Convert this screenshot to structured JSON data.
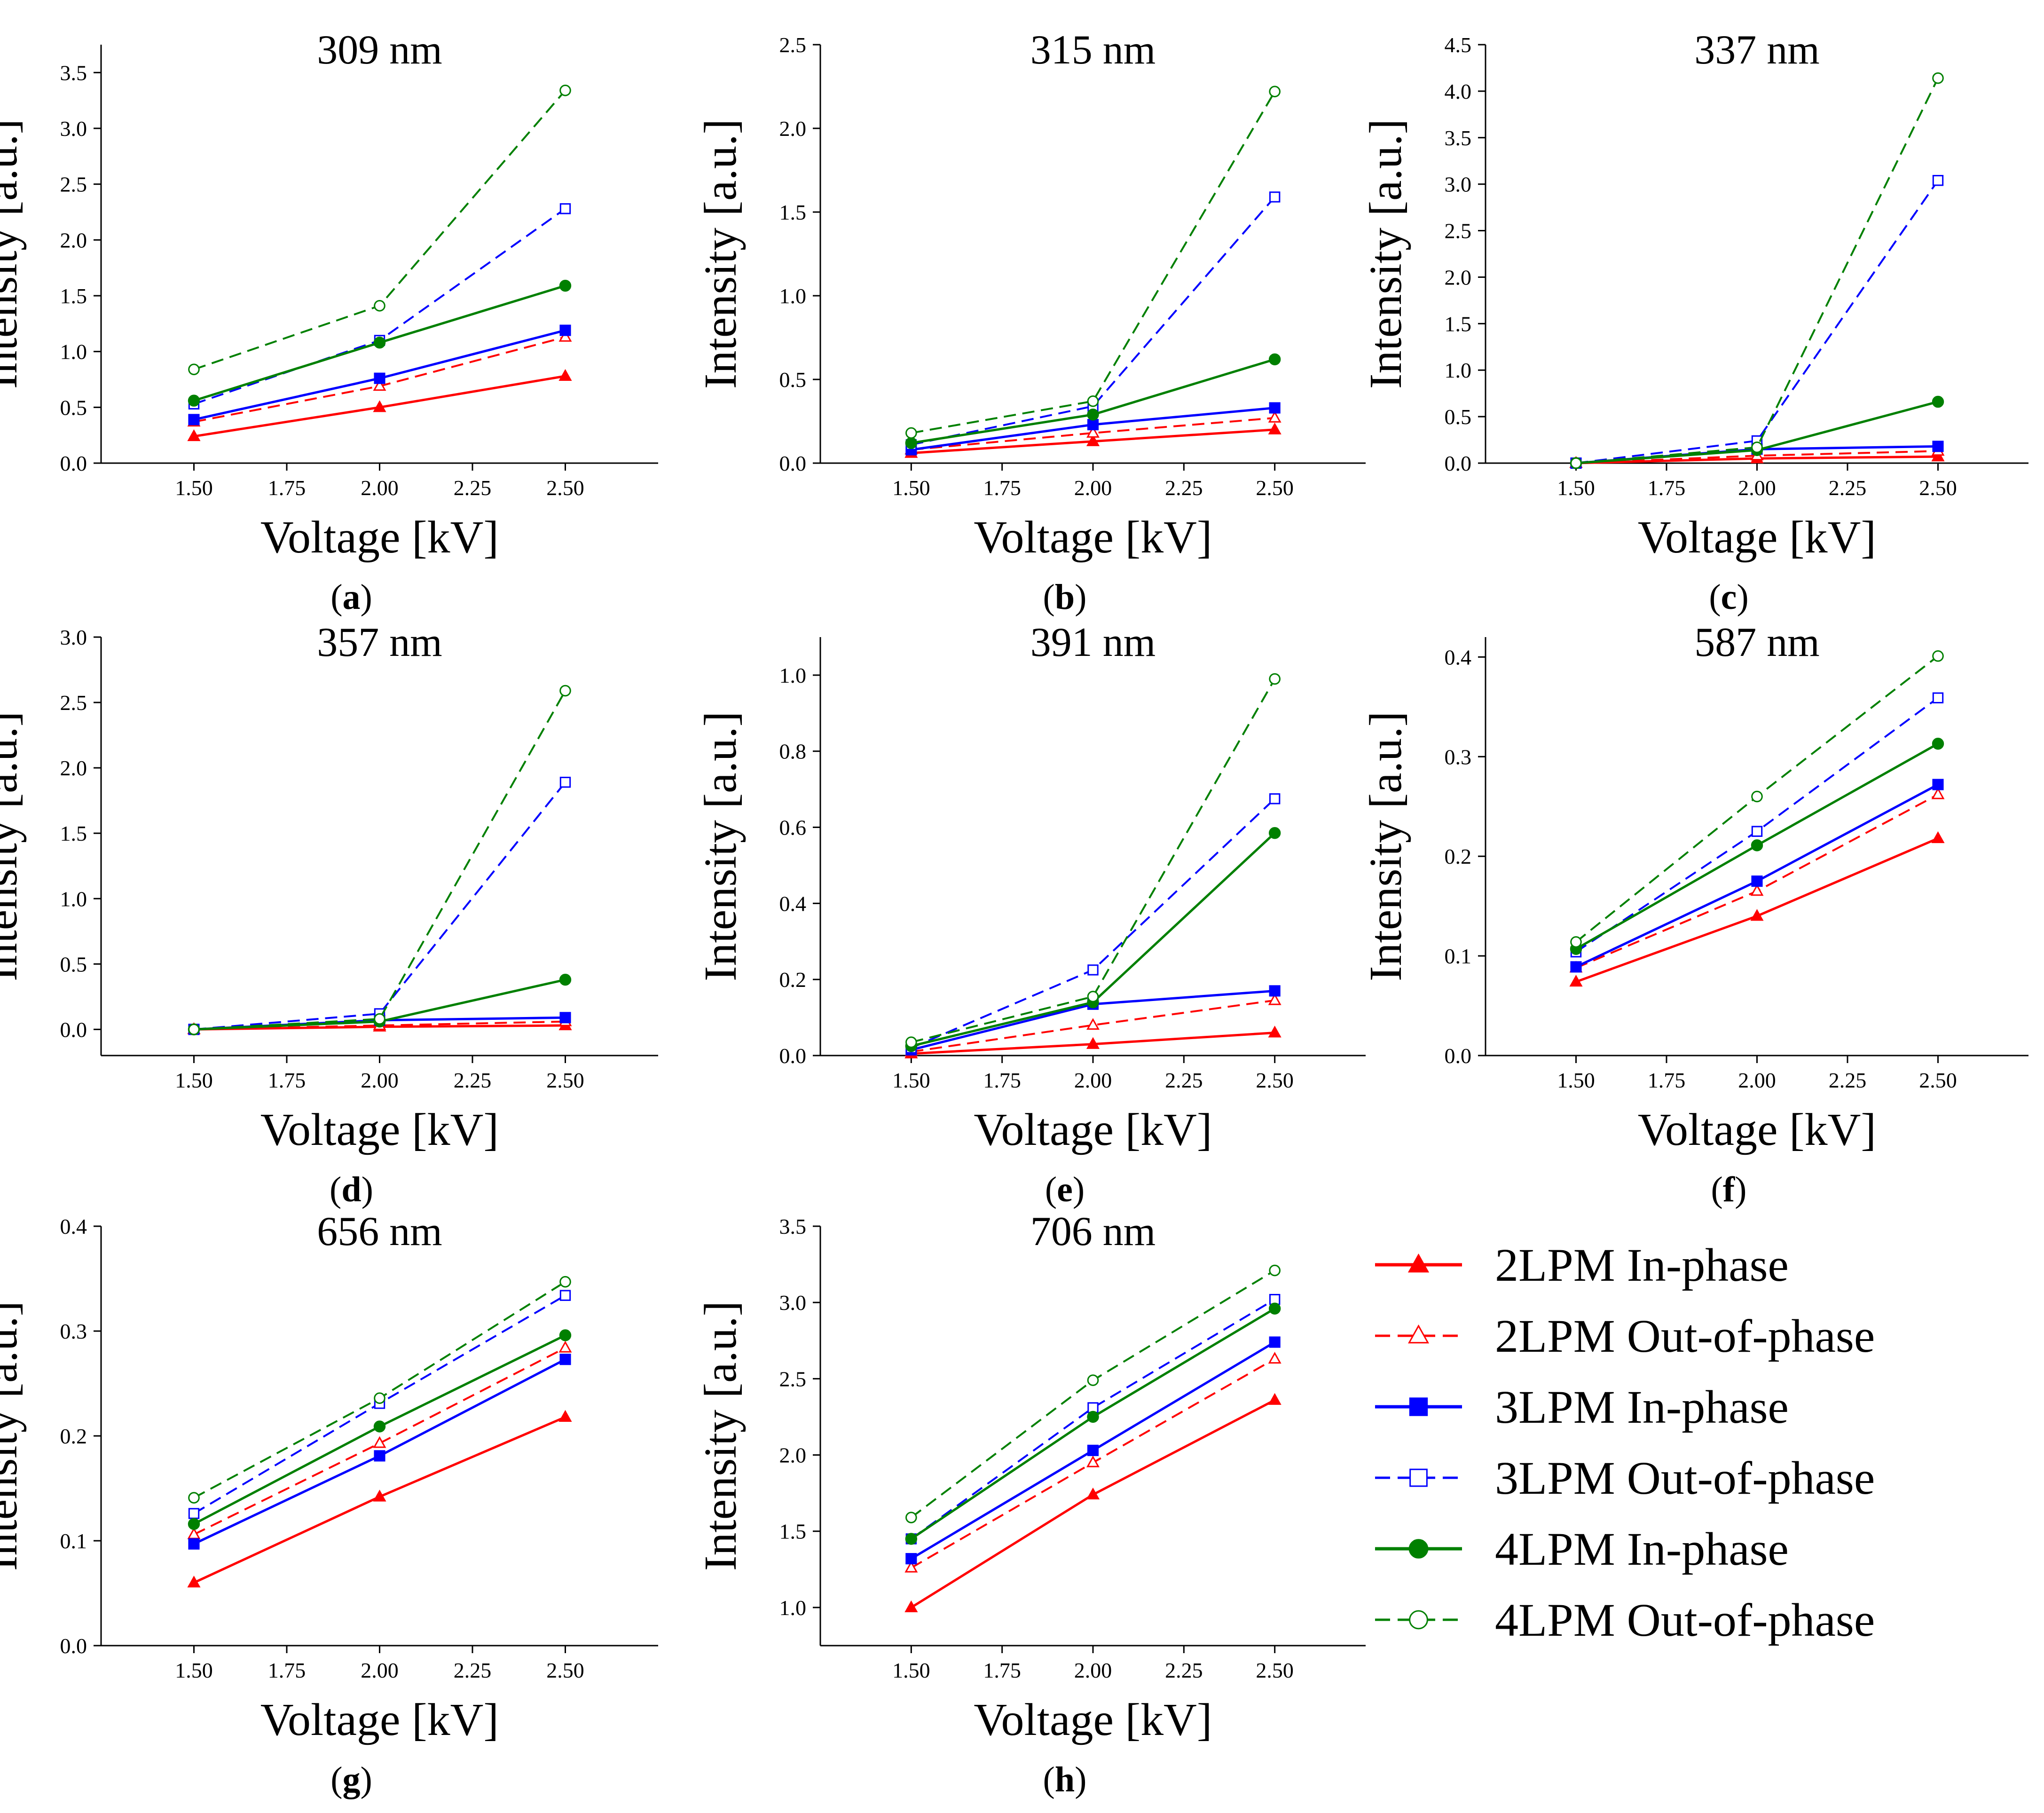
{
  "series_styles": [
    {
      "name": "2LPM In-phase",
      "color": "#ff0000",
      "dashed": false,
      "marker": "triangle",
      "filled": true
    },
    {
      "name": "2LPM Out-of-phase",
      "color": "#ff0000",
      "dashed": true,
      "marker": "triangle",
      "filled": false
    },
    {
      "name": "3LPM In-phase",
      "color": "#0000ff",
      "dashed": false,
      "marker": "square",
      "filled": true
    },
    {
      "name": "3LPM Out-of-phase",
      "color": "#0000ff",
      "dashed": true,
      "marker": "square",
      "filled": false
    },
    {
      "name": "4LPM In-phase",
      "color": "#008000",
      "dashed": false,
      "marker": "circle",
      "filled": true
    },
    {
      "name": "4LPM Out-of-phase",
      "color": "#008000",
      "dashed": true,
      "marker": "circle",
      "filled": false
    }
  ],
  "chart_data": [
    {
      "type": "line",
      "title": "309 nm",
      "panel_label": "a",
      "xlabel": "Voltage [kV]",
      "ylabel": "Intensity [a.u.]",
      "x": [
        1.5,
        2.0,
        2.5
      ],
      "xlim": [
        1.25,
        2.75
      ],
      "xticks": [
        "1.50",
        "1.75",
        "2.00",
        "2.25",
        "2.50"
      ],
      "ylim": [
        0,
        3.75
      ],
      "yticks": [
        "0.0",
        "0.5",
        "1.0",
        "1.5",
        "2.0",
        "2.5",
        "3.0",
        "3.5"
      ],
      "series": [
        {
          "name": "2LPM In-phase",
          "values": [
            0.24,
            0.5,
            0.78
          ]
        },
        {
          "name": "2LPM Out-of-phase",
          "values": [
            0.37,
            0.69,
            1.13
          ]
        },
        {
          "name": "3LPM In-phase",
          "values": [
            0.39,
            0.76,
            1.19
          ]
        },
        {
          "name": "3LPM Out-of-phase",
          "values": [
            0.53,
            1.1,
            2.28
          ]
        },
        {
          "name": "4LPM In-phase",
          "values": [
            0.56,
            1.08,
            1.59
          ]
        },
        {
          "name": "4LPM Out-of-phase",
          "values": [
            0.84,
            1.41,
            3.34
          ]
        }
      ]
    },
    {
      "type": "line",
      "title": "315 nm",
      "panel_label": "b",
      "xlabel": "Voltage [kV]",
      "ylabel": "Intensity [a.u.]",
      "x": [
        1.5,
        2.0,
        2.5
      ],
      "xlim": [
        1.25,
        2.75
      ],
      "xticks": [
        "1.50",
        "1.75",
        "2.00",
        "2.25",
        "2.50"
      ],
      "ylim": [
        0,
        2.5
      ],
      "yticks": [
        "0.0",
        "0.5",
        "1.0",
        "1.5",
        "2.0",
        "2.5"
      ],
      "series": [
        {
          "name": "2LPM In-phase",
          "values": [
            0.06,
            0.13,
            0.2
          ]
        },
        {
          "name": "2LPM Out-of-phase",
          "values": [
            0.08,
            0.18,
            0.27
          ]
        },
        {
          "name": "3LPM In-phase",
          "values": [
            0.08,
            0.23,
            0.33
          ]
        },
        {
          "name": "3LPM Out-of-phase",
          "values": [
            0.11,
            0.34,
            1.59
          ]
        },
        {
          "name": "4LPM In-phase",
          "values": [
            0.12,
            0.29,
            0.62
          ]
        },
        {
          "name": "4LPM Out-of-phase",
          "values": [
            0.18,
            0.37,
            2.22
          ]
        }
      ]
    },
    {
      "type": "line",
      "title": "337 nm",
      "panel_label": "c",
      "xlabel": "Voltage [kV]",
      "ylabel": "Intensity [a.u.]",
      "x": [
        1.5,
        2.0,
        2.5
      ],
      "xlim": [
        1.25,
        2.75
      ],
      "xticks": [
        "1.50",
        "1.75",
        "2.00",
        "2.25",
        "2.50"
      ],
      "ylim": [
        0,
        4.5
      ],
      "yticks": [
        "0.0",
        "0.5",
        "1.0",
        "1.5",
        "2.0",
        "2.5",
        "3.0",
        "3.5",
        "4.0",
        "4.5"
      ],
      "series": [
        {
          "name": "2LPM In-phase",
          "values": [
            0.0,
            0.05,
            0.07
          ]
        },
        {
          "name": "2LPM Out-of-phase",
          "values": [
            0.0,
            0.08,
            0.13
          ]
        },
        {
          "name": "3LPM In-phase",
          "values": [
            0.0,
            0.15,
            0.18
          ]
        },
        {
          "name": "3LPM Out-of-phase",
          "values": [
            0.0,
            0.24,
            3.04
          ]
        },
        {
          "name": "4LPM In-phase",
          "values": [
            0.0,
            0.14,
            0.66
          ]
        },
        {
          "name": "4LPM Out-of-phase",
          "values": [
            0.0,
            0.17,
            4.14
          ]
        }
      ]
    },
    {
      "type": "line",
      "title": "357 nm",
      "panel_label": "d",
      "xlabel": "Voltage [kV]",
      "ylabel": "Intensity [a.u.]",
      "x": [
        1.5,
        2.0,
        2.5
      ],
      "xlim": [
        1.25,
        2.75
      ],
      "xticks": [
        "1.50",
        "1.75",
        "2.00",
        "2.25",
        "2.50"
      ],
      "ylim": [
        -0.2,
        3.0
      ],
      "yticks": [
        "0.0",
        "0.5",
        "1.0",
        "1.5",
        "2.0",
        "2.5",
        "3.0"
      ],
      "series": [
        {
          "name": "2LPM In-phase",
          "values": [
            0.0,
            0.02,
            0.03
          ]
        },
        {
          "name": "2LPM Out-of-phase",
          "values": [
            0.0,
            0.03,
            0.06
          ]
        },
        {
          "name": "3LPM In-phase",
          "values": [
            0.0,
            0.07,
            0.09
          ]
        },
        {
          "name": "3LPM Out-of-phase",
          "values": [
            0.0,
            0.12,
            1.89
          ]
        },
        {
          "name": "4LPM In-phase",
          "values": [
            0.0,
            0.06,
            0.38
          ]
        },
        {
          "name": "4LPM Out-of-phase",
          "values": [
            0.0,
            0.08,
            2.59
          ]
        }
      ]
    },
    {
      "type": "line",
      "title": "391 nm",
      "panel_label": "e",
      "xlabel": "Voltage [kV]",
      "ylabel": "Intensity [a.u.]",
      "x": [
        1.5,
        2.0,
        2.5
      ],
      "xlim": [
        1.25,
        2.75
      ],
      "xticks": [
        "1.50",
        "1.75",
        "2.00",
        "2.25",
        "2.50"
      ],
      "ylim": [
        0,
        1.1
      ],
      "yticks": [
        "0.0",
        "0.2",
        "0.4",
        "0.6",
        "0.8",
        "1.0"
      ],
      "series": [
        {
          "name": "2LPM In-phase",
          "values": [
            0.005,
            0.03,
            0.06
          ]
        },
        {
          "name": "2LPM Out-of-phase",
          "values": [
            0.01,
            0.08,
            0.145
          ]
        },
        {
          "name": "3LPM In-phase",
          "values": [
            0.015,
            0.135,
            0.17
          ]
        },
        {
          "name": "3LPM Out-of-phase",
          "values": [
            0.02,
            0.225,
            0.675
          ]
        },
        {
          "name": "4LPM In-phase",
          "values": [
            0.025,
            0.14,
            0.585
          ]
        },
        {
          "name": "4LPM Out-of-phase",
          "values": [
            0.035,
            0.155,
            0.99
          ]
        }
      ]
    },
    {
      "type": "line",
      "title": "587 nm",
      "panel_label": "f",
      "xlabel": "Voltage [kV]",
      "ylabel": "Intensity [a.u.]",
      "x": [
        1.5,
        2.0,
        2.5
      ],
      "xlim": [
        1.25,
        2.75
      ],
      "xticks": [
        "1.50",
        "1.75",
        "2.00",
        "2.25",
        "2.50"
      ],
      "ylim": [
        0,
        0.42
      ],
      "yticks": [
        "0.0",
        "0.1",
        "0.2",
        "0.3",
        "0.4"
      ],
      "series": [
        {
          "name": "2LPM In-phase",
          "values": [
            0.074,
            0.14,
            0.218
          ]
        },
        {
          "name": "2LPM Out-of-phase",
          "values": [
            0.088,
            0.165,
            0.262
          ]
        },
        {
          "name": "3LPM In-phase",
          "values": [
            0.089,
            0.175,
            0.272
          ]
        },
        {
          "name": "3LPM Out-of-phase",
          "values": [
            0.104,
            0.225,
            0.359
          ]
        },
        {
          "name": "4LPM In-phase",
          "values": [
            0.107,
            0.211,
            0.313
          ]
        },
        {
          "name": "4LPM Out-of-phase",
          "values": [
            0.114,
            0.26,
            0.401
          ]
        }
      ]
    },
    {
      "type": "line",
      "title": "656 nm",
      "panel_label": "g",
      "xlabel": "Voltage [kV]",
      "ylabel": "Intensity [a.u.]",
      "x": [
        1.5,
        2.0,
        2.5
      ],
      "xlim": [
        1.25,
        2.75
      ],
      "xticks": [
        "1.50",
        "1.75",
        "2.00",
        "2.25",
        "2.50"
      ],
      "ylim": [
        0,
        0.4
      ],
      "yticks": [
        "0.0",
        "0.1",
        "0.2",
        "0.3",
        "0.4"
      ],
      "series": [
        {
          "name": "2LPM In-phase",
          "values": [
            0.06,
            0.142,
            0.218
          ]
        },
        {
          "name": "2LPM Out-of-phase",
          "values": [
            0.106,
            0.193,
            0.284
          ]
        },
        {
          "name": "3LPM In-phase",
          "values": [
            0.097,
            0.181,
            0.273
          ]
        },
        {
          "name": "3LPM Out-of-phase",
          "values": [
            0.126,
            0.231,
            0.334
          ]
        },
        {
          "name": "4LPM In-phase",
          "values": [
            0.116,
            0.209,
            0.296
          ]
        },
        {
          "name": "4LPM Out-of-phase",
          "values": [
            0.141,
            0.236,
            0.347
          ]
        }
      ]
    },
    {
      "type": "line",
      "title": "706 nm",
      "panel_label": "h",
      "xlabel": "Voltage [kV]",
      "ylabel": "Intensity [a.u.]",
      "x": [
        1.5,
        2.0,
        2.5
      ],
      "xlim": [
        1.25,
        2.75
      ],
      "xticks": [
        "1.50",
        "1.75",
        "2.00",
        "2.25",
        "2.50"
      ],
      "ylim": [
        0.75,
        3.5
      ],
      "yticks": [
        "1.0",
        "1.5",
        "2.0",
        "2.5",
        "3.0",
        "3.5"
      ],
      "series": [
        {
          "name": "2LPM In-phase",
          "values": [
            1.0,
            1.74,
            2.36
          ]
        },
        {
          "name": "2LPM Out-of-phase",
          "values": [
            1.26,
            1.95,
            2.63
          ]
        },
        {
          "name": "3LPM In-phase",
          "values": [
            1.32,
            2.03,
            2.74
          ]
        },
        {
          "name": "3LPM Out-of-phase",
          "values": [
            1.45,
            2.31,
            3.02
          ]
        },
        {
          "name": "4LPM In-phase",
          "values": [
            1.45,
            2.25,
            2.96
          ]
        },
        {
          "name": "4LPM Out-of-phase",
          "values": [
            1.59,
            2.49,
            3.21
          ]
        }
      ]
    }
  ]
}
